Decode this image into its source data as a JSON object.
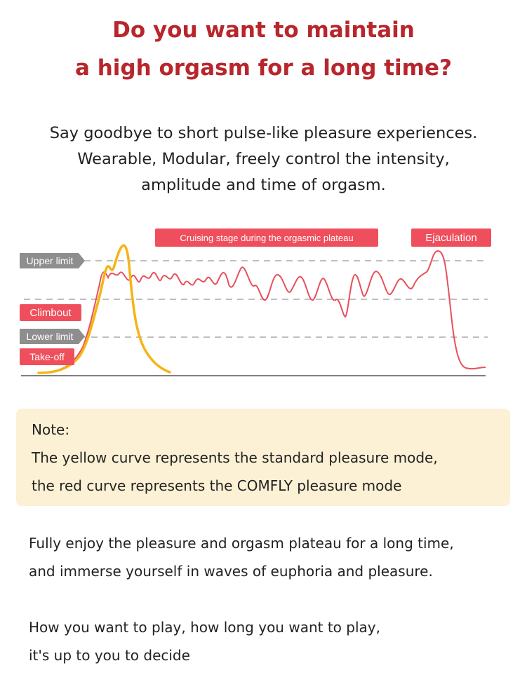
{
  "headline": {
    "line1": "Do you want to maintain",
    "line2": "a high orgasm for a long time?"
  },
  "subhead": {
    "line1": "Say goodbye to short pulse-like pleasure experiences.",
    "line2": "Wearable, Modular, freely control the intensity,",
    "line3": "amplitude and time of orgasm."
  },
  "chart_data": {
    "type": "line",
    "levels": {
      "upper_limit_label": "Upper limit",
      "climbout_label": "Climbout",
      "lower_limit_label": "Lower limit",
      "takeoff_label": "Take-off"
    },
    "stages": {
      "plateau_label": "Cruising stage during the orgasmic plateau",
      "ejaculation_label": "Ejaculation"
    },
    "colors": {
      "yellow_curve": "#f5b416",
      "red_curve": "#e8505b",
      "label_red": "#ef4f5c",
      "label_gray": "#8e8e8e",
      "dashed_line": "#999999",
      "baseline": "#555555"
    },
    "series": [
      {
        "values": "standard pleasure mode (yellow): short spike rising to above the upper limit then dropping to zero"
      },
      {
        "values": "COMFLY pleasure mode (red): rises to plateau and oscillates between upper limit and climbout before ejaculation peak"
      }
    ]
  },
  "note": {
    "title": "Note:",
    "line1": "The yellow curve represents the standard pleasure mode,",
    "line2": "the red curve represents the COMFLY pleasure mode"
  },
  "para1": {
    "line1": "Fully enjoy the pleasure and orgasm plateau for a long time,",
    "line2": "and immerse yourself in waves of euphoria and pleasure."
  },
  "para2": {
    "line1": "How you want to play, how long you want to play,",
    "line2": "it's up to you to decide"
  }
}
